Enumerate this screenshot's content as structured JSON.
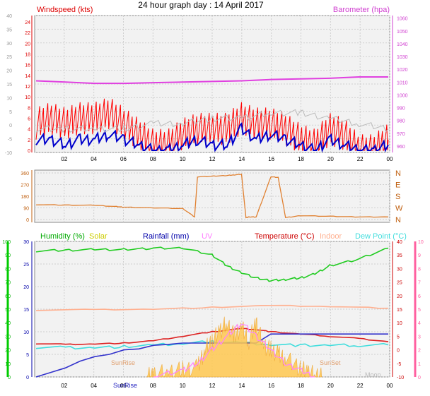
{
  "title": "24 hour graph day : 14 April 2017",
  "chart_data": [
    {
      "type": "line",
      "panel": "wind-baro",
      "left_label": "Windspeed (kts)",
      "right_label": "Barometer (hpa)",
      "left_ticks": [
        -10,
        -5,
        0,
        5,
        10,
        15,
        20,
        25,
        30,
        35,
        40
      ],
      "left_ticks_b": [
        0,
        2,
        4,
        6,
        8,
        10,
        12,
        14,
        16,
        18,
        20,
        22,
        24
      ],
      "right_ticks": [
        960,
        970,
        980,
        990,
        1000,
        1010,
        1020,
        1030,
        1040,
        1050,
        1060
      ],
      "x_ticks": [
        "02",
        "04",
        "06",
        "08",
        "10",
        "12",
        "14",
        "16",
        "18",
        "20",
        "22",
        "00"
      ],
      "series": [
        {
          "name": "Barometer",
          "color": "#e040e0",
          "x": [
            0,
            2,
            4,
            6,
            8,
            10,
            12,
            14,
            16,
            18,
            20,
            22,
            24
          ],
          "y": [
            1011,
            1010,
            1009,
            1009,
            1009.5,
            1010,
            1010.5,
            1011,
            1012,
            1012.5,
            1013,
            1014,
            1014
          ]
        },
        {
          "name": "Gust",
          "color": "#ff0000",
          "x": [
            0,
            1,
            2,
            3,
            4,
            5,
            6,
            7,
            8,
            9,
            10,
            11,
            12,
            13,
            14,
            15,
            16,
            17,
            18,
            19,
            20,
            21,
            22,
            23,
            24
          ],
          "y": [
            5,
            6,
            5,
            6,
            6,
            7,
            5,
            3,
            1,
            1,
            3,
            4,
            4,
            4,
            6,
            5,
            5,
            4,
            2,
            1,
            4,
            3,
            0,
            0,
            2
          ]
        },
        {
          "name": "Average",
          "color": "#0000cc",
          "x": [
            0,
            1,
            2,
            3,
            4,
            5,
            6,
            7,
            8,
            9,
            10,
            11,
            12,
            13,
            14,
            15,
            16,
            17,
            18,
            19,
            20,
            21,
            22,
            23,
            24
          ],
          "y": [
            2,
            2,
            1,
            2,
            2,
            3,
            2,
            1,
            0,
            0,
            1,
            2,
            1,
            1,
            4,
            2,
            3,
            2,
            1,
            0,
            2,
            1,
            0,
            0,
            1
          ]
        },
        {
          "name": "Wind grey",
          "color": "#bbbbbb",
          "x": [
            0,
            2,
            4,
            6,
            8,
            10,
            12,
            14,
            16,
            18,
            20,
            22,
            24
          ],
          "y": [
            4,
            4,
            4,
            4,
            5,
            5,
            6,
            6,
            7,
            7,
            6,
            5,
            4
          ]
        }
      ]
    },
    {
      "type": "line",
      "panel": "direction",
      "left_ticks": [
        0,
        90,
        180,
        270,
        360
      ],
      "right_ticks": [
        "N",
        "W",
        "S",
        "E",
        "N"
      ],
      "series": [
        {
          "name": "Direction",
          "color": "#e08030",
          "x": [
            0,
            2,
            4,
            5.5,
            6,
            8,
            10,
            10.8,
            11,
            12,
            13,
            13.5,
            14,
            14.3,
            14.5,
            15,
            16,
            16.5,
            17,
            18,
            20,
            22,
            24
          ],
          "y": [
            115,
            112,
            110,
            100,
            95,
            90,
            85,
            20,
            330,
            335,
            340,
            345,
            350,
            15,
            20,
            20,
            330,
            325,
            15,
            30,
            25,
            20,
            20
          ]
        }
      ]
    },
    {
      "type": "line",
      "panel": "temp-hum",
      "labels": [
        "Humidity (%)",
        "Solar",
        "Rainfall (mm)",
        "UV",
        "Temperature (°C)",
        "Indoor",
        "Dew Point (°C)"
      ],
      "label_colors": [
        "#00aa00",
        "#cccc00",
        "#0000aa",
        "#ff80ff",
        "#cc0000",
        "#ffb090",
        "#40dddd"
      ],
      "left_ticks_a": [
        0,
        10,
        20,
        30,
        40,
        50,
        60,
        70,
        80,
        90,
        100
      ],
      "left_ticks_b": [
        0,
        5,
        10,
        15,
        20,
        25,
        30
      ],
      "right_ticks_a": [
        -10,
        -5,
        0,
        5,
        10,
        15,
        20,
        25,
        30,
        35,
        40
      ],
      "right_ticks_b": [
        0,
        1,
        2,
        3,
        4,
        5,
        6,
        7,
        8,
        9,
        10
      ],
      "x_ticks": [
        "02",
        "04",
        "06",
        "08",
        "10",
        "12",
        "14",
        "16",
        "18",
        "20",
        "22",
        "00"
      ],
      "annotations": [
        "SunRise",
        "SunSet",
        "SunRise",
        "Moon"
      ],
      "series": [
        {
          "name": "Humidity",
          "color": "#22cc22",
          "x": [
            0,
            2,
            4,
            6,
            8,
            10,
            12,
            13,
            14,
            15,
            16,
            17,
            18,
            19,
            20,
            22,
            24
          ],
          "y": [
            93,
            93.5,
            94,
            94,
            95,
            95,
            90,
            82,
            77,
            73,
            71,
            72,
            73,
            76,
            82,
            87,
            95
          ]
        },
        {
          "name": "Indoor",
          "color": "#ffb090",
          "x": [
            0,
            4,
            8,
            12,
            16,
            20,
            24
          ],
          "y": [
            14.8,
            14.9,
            15.0,
            15.4,
            15.8,
            15.6,
            15.2
          ]
        },
        {
          "name": "Temperature",
          "color": "#dd2222",
          "x": [
            0,
            2,
            4,
            6,
            8,
            10,
            12,
            14,
            15,
            16,
            18,
            20,
            22,
            24
          ],
          "y": [
            7.4,
            7.2,
            7.3,
            7.5,
            8.0,
            9.0,
            10.0,
            10.7,
            10.5,
            10.0,
            9.5,
            9.0,
            8.5,
            7.8
          ]
        },
        {
          "name": "Dew Point",
          "color": "#40dddd",
          "x": [
            0,
            2,
            4,
            6,
            8,
            10,
            12,
            14,
            16,
            18,
            20,
            22,
            24
          ],
          "y": [
            6.6,
            6.5,
            6.5,
            6.7,
            7.0,
            7.4,
            7.8,
            7.6,
            7.2,
            7.0,
            7.0,
            7.0,
            7.1
          ]
        },
        {
          "name": "Rainfall",
          "color": "#3333cc",
          "x": [
            0,
            1,
            2,
            3,
            4,
            5,
            6,
            7,
            8,
            9,
            10,
            15,
            16,
            17,
            18,
            20,
            22,
            24
          ],
          "y": [
            0,
            1,
            2,
            3.5,
            4.5,
            5,
            6,
            6.2,
            7,
            7.2,
            7.5,
            7.5,
            9.5,
            9.5,
            9.5,
            9.5,
            9.5,
            9.5
          ]
        },
        {
          "name": "Solar",
          "color": "#ffbb33",
          "x": [
            7.5,
            8,
            9,
            10,
            11,
            11.5,
            12,
            12.5,
            13,
            13.5,
            14,
            14.5,
            15,
            15.5,
            16,
            16.5,
            17,
            18,
            18.5,
            19,
            19.5
          ],
          "y": [
            0,
            0.5,
            1,
            1.5,
            2,
            6,
            8,
            10,
            12,
            9,
            11,
            8,
            12,
            7,
            6,
            5,
            4,
            2,
            1,
            0.5,
            0
          ]
        },
        {
          "name": "UV",
          "color": "#ff80ff",
          "x": [
            8,
            10,
            11,
            12,
            13,
            14,
            15,
            16,
            17,
            18,
            19
          ],
          "y": [
            0,
            0.5,
            1,
            2,
            3,
            4,
            3,
            2,
            1,
            0.5,
            0
          ]
        }
      ]
    }
  ]
}
